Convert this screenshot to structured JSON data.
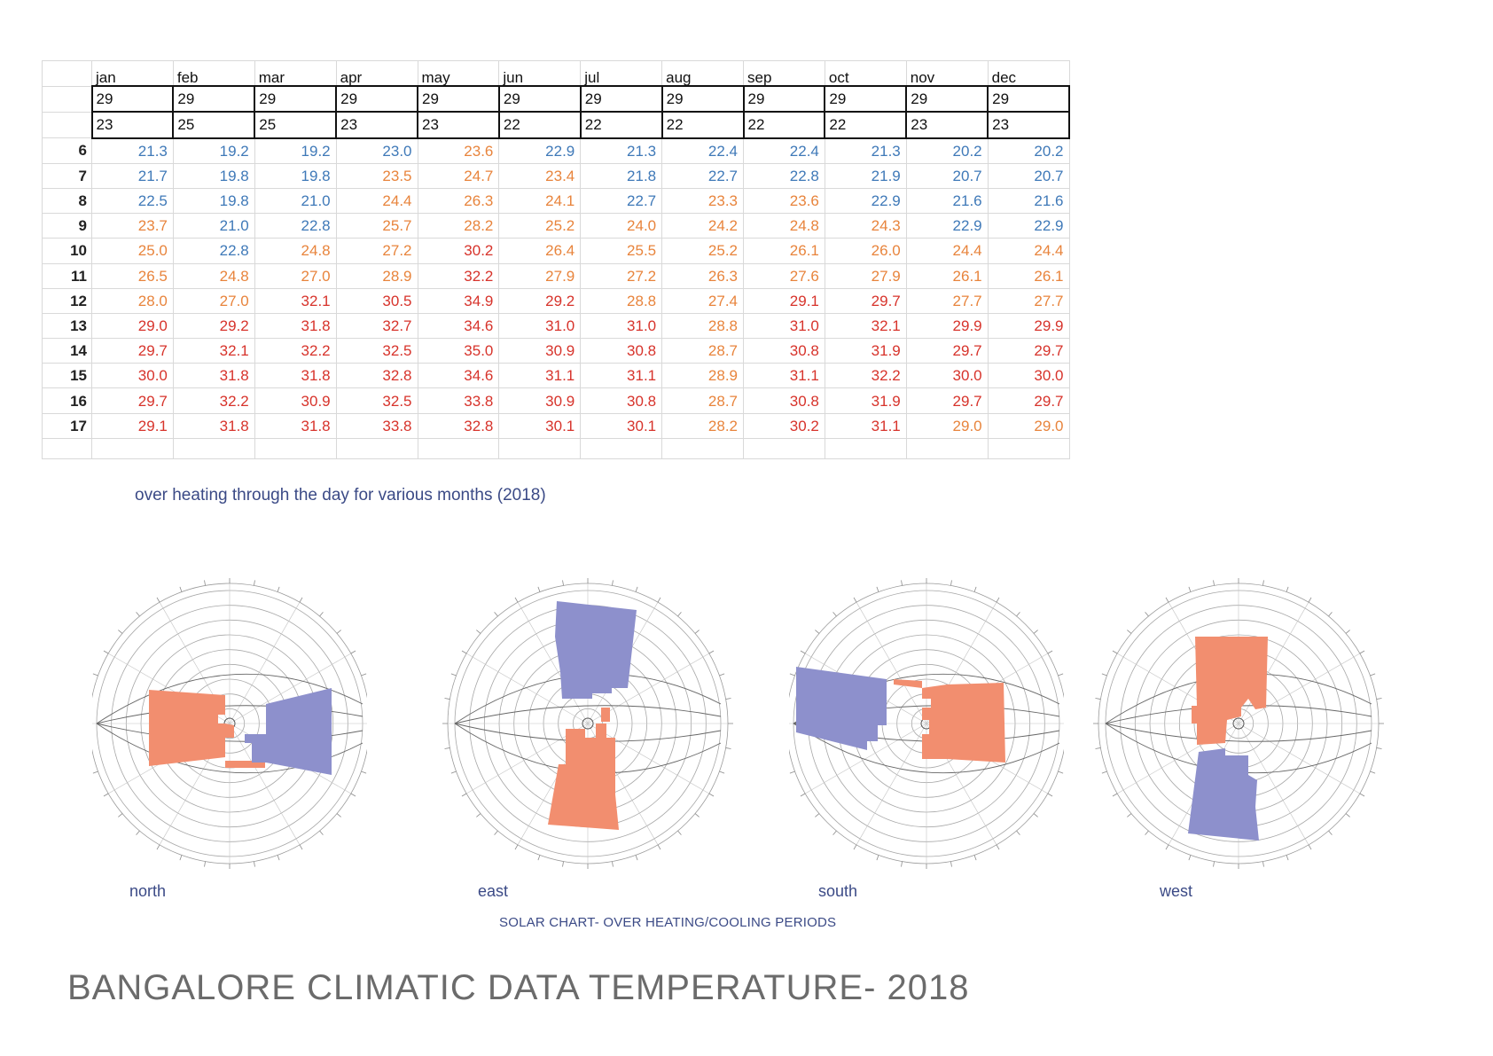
{
  "table": {
    "months": [
      "jan",
      "feb",
      "mar",
      "apr",
      "may",
      "jun",
      "jul",
      "aug",
      "sep",
      "oct",
      "nov",
      "dec"
    ],
    "max_row": [
      "29",
      "29",
      "29",
      "29",
      "29",
      "29",
      "29",
      "29",
      "29",
      "29",
      "29",
      "29"
    ],
    "min_row": [
      "23",
      "25",
      "25",
      "23",
      "23",
      "22",
      "22",
      "22",
      "22",
      "22",
      "23",
      "23"
    ],
    "rows": [
      {
        "hour": "6",
        "values": [
          "21.3",
          "19.2",
          "19.2",
          "23.0",
          "23.6",
          "22.9",
          "21.3",
          "22.4",
          "22.4",
          "21.3",
          "20.2",
          "20.2"
        ],
        "levels": [
          "c",
          "c",
          "c",
          "c",
          "w",
          "c",
          "c",
          "c",
          "c",
          "c",
          "c",
          "c"
        ]
      },
      {
        "hour": "7",
        "values": [
          "21.7",
          "19.8",
          "19.8",
          "23.5",
          "24.7",
          "23.4",
          "21.8",
          "22.7",
          "22.8",
          "21.9",
          "20.7",
          "20.7"
        ],
        "levels": [
          "c",
          "c",
          "c",
          "w",
          "w",
          "w",
          "c",
          "c",
          "c",
          "c",
          "c",
          "c"
        ]
      },
      {
        "hour": "8",
        "values": [
          "22.5",
          "19.8",
          "21.0",
          "24.4",
          "26.3",
          "24.1",
          "22.7",
          "23.3",
          "23.6",
          "22.9",
          "21.6",
          "21.6"
        ],
        "levels": [
          "c",
          "c",
          "c",
          "w",
          "w",
          "w",
          "c",
          "w",
          "w",
          "c",
          "c",
          "c"
        ]
      },
      {
        "hour": "9",
        "values": [
          "23.7",
          "21.0",
          "22.8",
          "25.7",
          "28.2",
          "25.2",
          "24.0",
          "24.2",
          "24.8",
          "24.3",
          "22.9",
          "22.9"
        ],
        "levels": [
          "w",
          "c",
          "c",
          "w",
          "w",
          "w",
          "w",
          "w",
          "w",
          "w",
          "c",
          "c"
        ]
      },
      {
        "hour": "10",
        "values": [
          "25.0",
          "22.8",
          "24.8",
          "27.2",
          "30.2",
          "26.4",
          "25.5",
          "25.2",
          "26.1",
          "26.0",
          "24.4",
          "24.4"
        ],
        "levels": [
          "w",
          "c",
          "w",
          "w",
          "h",
          "w",
          "w",
          "w",
          "w",
          "w",
          "w",
          "w"
        ]
      },
      {
        "hour": "11",
        "values": [
          "26.5",
          "24.8",
          "27.0",
          "28.9",
          "32.2",
          "27.9",
          "27.2",
          "26.3",
          "27.6",
          "27.9",
          "26.1",
          "26.1"
        ],
        "levels": [
          "w",
          "w",
          "w",
          "w",
          "h",
          "w",
          "w",
          "w",
          "w",
          "w",
          "w",
          "w"
        ]
      },
      {
        "hour": "12",
        "values": [
          "28.0",
          "27.0",
          "32.1",
          "30.5",
          "34.9",
          "29.2",
          "28.8",
          "27.4",
          "29.1",
          "29.7",
          "27.7",
          "27.7"
        ],
        "levels": [
          "w",
          "w",
          "h",
          "h",
          "h",
          "h",
          "w",
          "w",
          "h",
          "h",
          "w",
          "w"
        ]
      },
      {
        "hour": "13",
        "values": [
          "29.0",
          "29.2",
          "31.8",
          "32.7",
          "34.6",
          "31.0",
          "31.0",
          "28.8",
          "31.0",
          "32.1",
          "29.9",
          "29.9"
        ],
        "levels": [
          "h",
          "h",
          "h",
          "h",
          "h",
          "h",
          "h",
          "w",
          "h",
          "h",
          "h",
          "h"
        ]
      },
      {
        "hour": "14",
        "values": [
          "29.7",
          "32.1",
          "32.2",
          "32.5",
          "35.0",
          "30.9",
          "30.8",
          "28.7",
          "30.8",
          "31.9",
          "29.7",
          "29.7"
        ],
        "levels": [
          "h",
          "h",
          "h",
          "h",
          "h",
          "h",
          "h",
          "w",
          "h",
          "h",
          "h",
          "h"
        ]
      },
      {
        "hour": "15",
        "values": [
          "30.0",
          "31.8",
          "31.8",
          "32.8",
          "34.6",
          "31.1",
          "31.1",
          "28.9",
          "31.1",
          "32.2",
          "30.0",
          "30.0"
        ],
        "levels": [
          "h",
          "h",
          "h",
          "h",
          "h",
          "h",
          "h",
          "w",
          "h",
          "h",
          "h",
          "h"
        ]
      },
      {
        "hour": "16",
        "values": [
          "29.7",
          "32.2",
          "30.9",
          "32.5",
          "33.8",
          "30.9",
          "30.8",
          "28.7",
          "30.8",
          "31.9",
          "29.7",
          "29.7"
        ],
        "levels": [
          "h",
          "h",
          "h",
          "h",
          "h",
          "h",
          "h",
          "w",
          "h",
          "h",
          "h",
          "h"
        ]
      },
      {
        "hour": "17",
        "values": [
          "29.1",
          "31.8",
          "31.8",
          "33.8",
          "32.8",
          "30.1",
          "30.1",
          "28.2",
          "30.2",
          "31.1",
          "29.0",
          "29.0"
        ],
        "levels": [
          "h",
          "h",
          "h",
          "h",
          "h",
          "h",
          "h",
          "w",
          "h",
          "h",
          "w",
          "w"
        ]
      }
    ],
    "caption": "over heating through the day for various months (2018)"
  },
  "colors": {
    "cool_text": "#3f79b8",
    "warm_text": "#e8843c",
    "hot_text": "#d7332b",
    "cooling_fill": "#8d90cc",
    "heating_fill": "#f28e6f",
    "caption": "#3b4a86"
  },
  "solar_charts": [
    {
      "label": "north"
    },
    {
      "label": "east"
    },
    {
      "label": "south"
    },
    {
      "label": "west"
    }
  ],
  "solar_caption": "SOLAR CHART- OVER HEATING/COOLING PERIODS",
  "title": "BANGALORE CLIMATIC DATA TEMPERATURE- 2018"
}
